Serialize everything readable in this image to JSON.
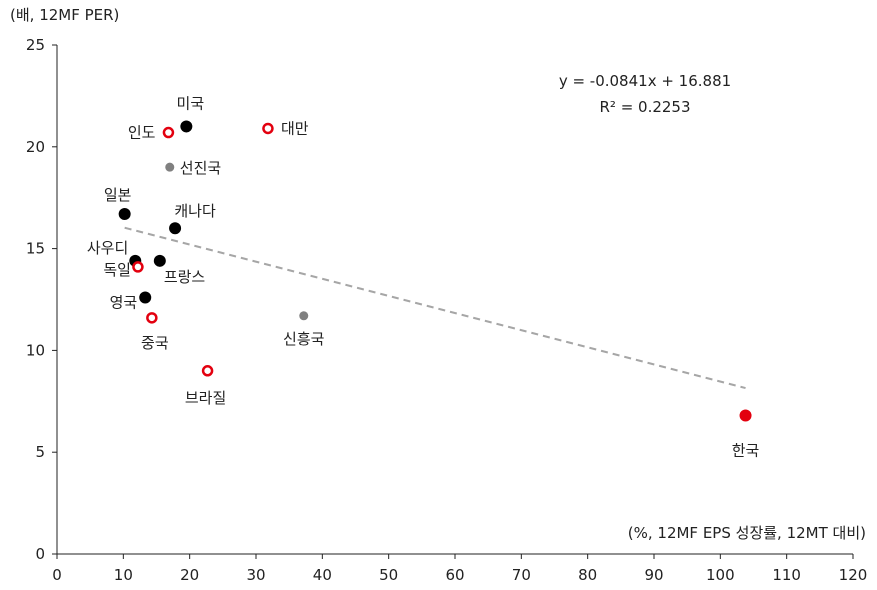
{
  "chart_data": {
    "type": "scatter",
    "title": "",
    "ylabel": "(배, 12MF PER)",
    "xlabel": "(%, 12MF EPS 성장률, 12MT 대비)",
    "xlim": [
      0,
      120
    ],
    "ylim": [
      0,
      25
    ],
    "x_ticks": [
      0,
      10,
      20,
      30,
      40,
      50,
      60,
      70,
      80,
      90,
      100,
      110,
      120
    ],
    "y_ticks": [
      0,
      5,
      10,
      15,
      20,
      25
    ],
    "grid": false,
    "colors": {
      "developed": "#000000",
      "emerging": "#e3000f",
      "aggregate": "#808080",
      "highlight": "#e3000f",
      "trendline": "#a6a6a6"
    },
    "points": [
      {
        "label": "미국",
        "x": 19.5,
        "y": 21.0,
        "group": "developed"
      },
      {
        "label": "인도",
        "x": 16.8,
        "y": 20.7,
        "group": "emerging"
      },
      {
        "label": "대만",
        "x": 31.8,
        "y": 20.9,
        "group": "emerging"
      },
      {
        "label": "선진국",
        "x": 17.0,
        "y": 19.0,
        "group": "aggregate"
      },
      {
        "label": "일본",
        "x": 10.2,
        "y": 16.7,
        "group": "developed"
      },
      {
        "label": "캐나다",
        "x": 17.8,
        "y": 16.0,
        "group": "developed"
      },
      {
        "label": "사우디",
        "x": 11.8,
        "y": 14.4,
        "group": "developed"
      },
      {
        "label": "독일",
        "x": 12.2,
        "y": 14.1,
        "group": "emerging"
      },
      {
        "label": "프랑스",
        "x": 15.5,
        "y": 14.4,
        "group": "developed"
      },
      {
        "label": "영국",
        "x": 13.3,
        "y": 12.6,
        "group": "developed"
      },
      {
        "label": "중국",
        "x": 14.3,
        "y": 11.6,
        "group": "emerging"
      },
      {
        "label": "신흥국",
        "x": 37.2,
        "y": 11.7,
        "group": "aggregate"
      },
      {
        "label": "브라질",
        "x": 22.7,
        "y": 9.0,
        "group": "emerging"
      },
      {
        "label": "한국",
        "x": 103.8,
        "y": 6.8,
        "group": "highlight"
      }
    ],
    "trendline": {
      "slope": -0.0841,
      "intercept": 16.881,
      "x_range": [
        10.2,
        103.8
      ],
      "equation": "y = -0.0841x + 16.881",
      "r_squared": "R² = 0.2253"
    }
  }
}
